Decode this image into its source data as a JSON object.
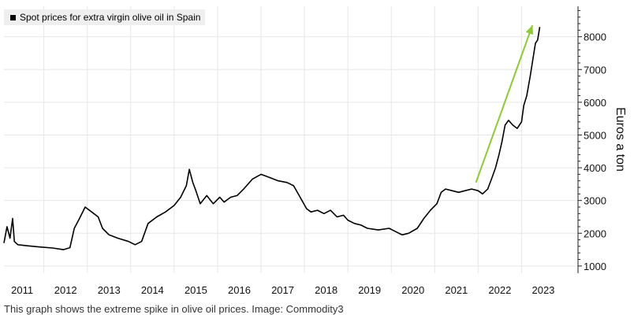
{
  "caption": "This graph shows the extreme spike in olive oil prices. Image: Commodity3",
  "colors": {
    "line": "#000000",
    "arrow": "#8ccc2e",
    "grid": "#e6e6e6",
    "legend_bg": "#efefef"
  },
  "chart_data": {
    "type": "line",
    "title": "",
    "ylabel": "Euros a ton",
    "ylim": [
      780,
      8930
    ],
    "xlim": [
      2010.58,
      2023.8
    ],
    "y_axis_side": "right",
    "grid": true,
    "legend_position": "top-left",
    "x_ticks": [
      2011,
      2012,
      2013,
      2014,
      2015,
      2016,
      2017,
      2018,
      2019,
      2020,
      2021,
      2022,
      2023
    ],
    "y_ticks": [
      1000,
      2000,
      3000,
      4000,
      5000,
      6000,
      7000,
      8000
    ],
    "series": [
      {
        "name": "Spot prices for extra virgin olive oil in Spain",
        "points": [
          [
            2010.58,
            1700
          ],
          [
            2010.65,
            2200
          ],
          [
            2010.72,
            1850
          ],
          [
            2010.78,
            2450
          ],
          [
            2010.82,
            1750
          ],
          [
            2010.9,
            1650
          ],
          [
            2011.1,
            1620
          ],
          [
            2011.4,
            1580
          ],
          [
            2011.7,
            1550
          ],
          [
            2011.95,
            1500
          ],
          [
            2012.1,
            1560
          ],
          [
            2012.2,
            2150
          ],
          [
            2012.32,
            2450
          ],
          [
            2012.45,
            2800
          ],
          [
            2012.6,
            2650
          ],
          [
            2012.75,
            2500
          ],
          [
            2012.85,
            2150
          ],
          [
            2013.0,
            1950
          ],
          [
            2013.2,
            1850
          ],
          [
            2013.45,
            1750
          ],
          [
            2013.6,
            1650
          ],
          [
            2013.75,
            1750
          ],
          [
            2013.9,
            2300
          ],
          [
            2014.1,
            2500
          ],
          [
            2014.3,
            2650
          ],
          [
            2014.5,
            2850
          ],
          [
            2014.65,
            3100
          ],
          [
            2014.78,
            3450
          ],
          [
            2014.85,
            3950
          ],
          [
            2014.93,
            3550
          ],
          [
            2015.0,
            3300
          ],
          [
            2015.1,
            2900
          ],
          [
            2015.25,
            3150
          ],
          [
            2015.4,
            2900
          ],
          [
            2015.55,
            3100
          ],
          [
            2015.65,
            2950
          ],
          [
            2015.8,
            3100
          ],
          [
            2015.95,
            3150
          ],
          [
            2016.1,
            3350
          ],
          [
            2016.3,
            3650
          ],
          [
            2016.5,
            3800
          ],
          [
            2016.7,
            3700
          ],
          [
            2016.9,
            3600
          ],
          [
            2017.1,
            3550
          ],
          [
            2017.25,
            3450
          ],
          [
            2017.4,
            3100
          ],
          [
            2017.55,
            2750
          ],
          [
            2017.65,
            2650
          ],
          [
            2017.8,
            2700
          ],
          [
            2017.95,
            2600
          ],
          [
            2018.1,
            2700
          ],
          [
            2018.25,
            2500
          ],
          [
            2018.4,
            2550
          ],
          [
            2018.5,
            2400
          ],
          [
            2018.65,
            2300
          ],
          [
            2018.8,
            2250
          ],
          [
            2018.95,
            2150
          ],
          [
            2019.2,
            2100
          ],
          [
            2019.45,
            2150
          ],
          [
            2019.6,
            2050
          ],
          [
            2019.75,
            1950
          ],
          [
            2019.9,
            2000
          ],
          [
            2020.1,
            2150
          ],
          [
            2020.25,
            2450
          ],
          [
            2020.4,
            2700
          ],
          [
            2020.55,
            2900
          ],
          [
            2020.65,
            3250
          ],
          [
            2020.75,
            3350
          ],
          [
            2020.9,
            3300
          ],
          [
            2021.05,
            3250
          ],
          [
            2021.2,
            3300
          ],
          [
            2021.35,
            3350
          ],
          [
            2021.5,
            3300
          ],
          [
            2021.6,
            3200
          ],
          [
            2021.72,
            3350
          ],
          [
            2021.82,
            3700
          ],
          [
            2021.9,
            4000
          ],
          [
            2021.98,
            4400
          ],
          [
            2022.05,
            4800
          ],
          [
            2022.12,
            5300
          ],
          [
            2022.2,
            5450
          ],
          [
            2022.3,
            5300
          ],
          [
            2022.4,
            5200
          ],
          [
            2022.5,
            5400
          ],
          [
            2022.55,
            5900
          ],
          [
            2022.62,
            6200
          ],
          [
            2022.7,
            6800
          ],
          [
            2022.76,
            7300
          ],
          [
            2022.82,
            7800
          ],
          [
            2022.87,
            7900
          ],
          [
            2022.92,
            8300
          ]
        ]
      }
    ],
    "annotations": [
      {
        "type": "arrow",
        "color": "#8ccc2e",
        "from": [
          2021.45,
          3550
        ],
        "to": [
          2022.75,
          8350
        ]
      }
    ]
  }
}
